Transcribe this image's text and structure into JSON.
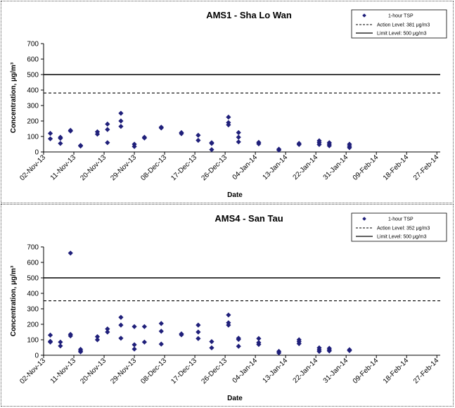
{
  "chart_data": [
    {
      "type": "scatter",
      "title": "AMS1 - Sha Lo Wan",
      "xlabel": "Date",
      "ylabel": "Concentration, μg/m³",
      "ylim": [
        0,
        700
      ],
      "yticks": [
        0,
        100,
        200,
        300,
        400,
        500,
        600,
        700
      ],
      "xticks": [
        "02-Nov-13",
        "11-Nov-13",
        "20-Nov-13",
        "29-Nov-13",
        "08-Dec-13",
        "17-Dec-13",
        "26-Dec-13",
        "04-Jan-14",
        "13-Jan-14",
        "22-Jan-14",
        "31-Jan-14",
        "09-Feb-14",
        "18-Feb-14",
        "27-Feb-14"
      ],
      "xlim": [
        "02-Nov-13",
        "28-Feb-14"
      ],
      "legend": {
        "placement": "top-right",
        "scatter_label": "1-hour TSP",
        "action_label": "Action Level: 381 μg/m3",
        "limit_label": "Limit Level: 500 μg/m3"
      },
      "action_level": 381,
      "limit_level": 500,
      "colors": {
        "points": "#1f1f7a",
        "lines": "#000000"
      },
      "series": [
        {
          "name": "1-hour TSP",
          "points": [
            [
              "04-Nov-13",
              120
            ],
            [
              "04-Nov-13",
              85
            ],
            [
              "07-Nov-13",
              95
            ],
            [
              "07-Nov-13",
              88
            ],
            [
              "07-Nov-13",
              55
            ],
            [
              "10-Nov-13",
              140
            ],
            [
              "10-Nov-13",
              135
            ],
            [
              "13-Nov-13",
              42
            ],
            [
              "13-Nov-13",
              38
            ],
            [
              "18-Nov-13",
              130
            ],
            [
              "18-Nov-13",
              115
            ],
            [
              "21-Nov-13",
              180
            ],
            [
              "21-Nov-13",
              145
            ],
            [
              "21-Nov-13",
              60
            ],
            [
              "25-Nov-13",
              250
            ],
            [
              "25-Nov-13",
              200
            ],
            [
              "25-Nov-13",
              165
            ],
            [
              "29-Nov-13",
              50
            ],
            [
              "29-Nov-13",
              35
            ],
            [
              "02-Dec-13",
              95
            ],
            [
              "02-Dec-13",
              90
            ],
            [
              "07-Dec-13",
              160
            ],
            [
              "07-Dec-13",
              155
            ],
            [
              "13-Dec-13",
              125
            ],
            [
              "13-Dec-13",
              118
            ],
            [
              "18-Dec-13",
              108
            ],
            [
              "18-Dec-13",
              75
            ],
            [
              "22-Dec-13",
              60
            ],
            [
              "22-Dec-13",
              55
            ],
            [
              "22-Dec-13",
              15
            ],
            [
              "27-Dec-13",
              225
            ],
            [
              "27-Dec-13",
              190
            ],
            [
              "27-Dec-13",
              175
            ],
            [
              "30-Dec-13",
              125
            ],
            [
              "30-Dec-13",
              95
            ],
            [
              "30-Dec-13",
              65
            ],
            [
              "05-Jan-14",
              62
            ],
            [
              "05-Jan-14",
              52
            ],
            [
              "11-Jan-14",
              18
            ],
            [
              "11-Jan-14",
              12
            ],
            [
              "17-Jan-14",
              55
            ],
            [
              "17-Jan-14",
              48
            ],
            [
              "23-Jan-14",
              72
            ],
            [
              "23-Jan-14",
              60
            ],
            [
              "23-Jan-14",
              48
            ],
            [
              "26-Jan-14",
              60
            ],
            [
              "26-Jan-14",
              50
            ],
            [
              "26-Jan-14",
              40
            ],
            [
              "01-Feb-14",
              50
            ],
            [
              "01-Feb-14",
              38
            ],
            [
              "01-Feb-14",
              28
            ]
          ]
        }
      ]
    },
    {
      "type": "scatter",
      "title": "AMS4 - San Tau",
      "xlabel": "Date",
      "ylabel": "Concentration, μg/m³",
      "ylim": [
        0,
        700
      ],
      "yticks": [
        0,
        100,
        200,
        300,
        400,
        500,
        600,
        700
      ],
      "xticks": [
        "02-Nov-13",
        "11-Nov-13",
        "20-Nov-13",
        "29-Nov-13",
        "08-Dec-13",
        "17-Dec-13",
        "26-Dec-13",
        "04-Jan-14",
        "13-Jan-14",
        "22-Jan-14",
        "31-Jan-14",
        "09-Feb-14",
        "18-Feb-14",
        "27-Feb-14"
      ],
      "xlim": [
        "02-Nov-13",
        "28-Feb-14"
      ],
      "legend": {
        "placement": "top-right",
        "scatter_label": "1-hour TSP",
        "action_label": "Action Level: 352 μg/m3",
        "limit_label": "Limit Level: 500 μg/m3"
      },
      "action_level": 352,
      "limit_level": 500,
      "colors": {
        "points": "#1f1f7a",
        "lines": "#000000"
      },
      "series": [
        {
          "name": "1-hour TSP",
          "points": [
            [
              "04-Nov-13",
              130
            ],
            [
              "04-Nov-13",
              90
            ],
            [
              "04-Nov-13",
              85
            ],
            [
              "07-Nov-13",
              85
            ],
            [
              "07-Nov-13",
              60
            ],
            [
              "10-Nov-13",
              660
            ],
            [
              "10-Nov-13",
              135
            ],
            [
              "10-Nov-13",
              125
            ],
            [
              "13-Nov-13",
              38
            ],
            [
              "13-Nov-13",
              28
            ],
            [
              "13-Nov-13",
              22
            ],
            [
              "18-Nov-13",
              120
            ],
            [
              "18-Nov-13",
              100
            ],
            [
              "21-Nov-13",
              170
            ],
            [
              "21-Nov-13",
              150
            ],
            [
              "25-Nov-13",
              245
            ],
            [
              "25-Nov-13",
              195
            ],
            [
              "25-Nov-13",
              110
            ],
            [
              "29-Nov-13",
              185
            ],
            [
              "29-Nov-13",
              68
            ],
            [
              "29-Nov-13",
              40
            ],
            [
              "02-Dec-13",
              185
            ],
            [
              "02-Dec-13",
              85
            ],
            [
              "07-Dec-13",
              205
            ],
            [
              "07-Dec-13",
              155
            ],
            [
              "07-Dec-13",
              72
            ],
            [
              "13-Dec-13",
              138
            ],
            [
              "13-Dec-13",
              132
            ],
            [
              "18-Dec-13",
              195
            ],
            [
              "18-Dec-13",
              150
            ],
            [
              "18-Dec-13",
              108
            ],
            [
              "22-Dec-13",
              88
            ],
            [
              "22-Dec-13",
              48
            ],
            [
              "27-Dec-13",
              260
            ],
            [
              "27-Dec-13",
              210
            ],
            [
              "27-Dec-13",
              195
            ],
            [
              "30-Dec-13",
              110
            ],
            [
              "30-Dec-13",
              102
            ],
            [
              "30-Dec-13",
              58
            ],
            [
              "05-Jan-14",
              108
            ],
            [
              "05-Jan-14",
              82
            ],
            [
              "05-Jan-14",
              70
            ],
            [
              "11-Jan-14",
              25
            ],
            [
              "11-Jan-14",
              15
            ],
            [
              "17-Jan-14",
              100
            ],
            [
              "17-Jan-14",
              88
            ],
            [
              "17-Jan-14",
              75
            ],
            [
              "23-Jan-14",
              48
            ],
            [
              "23-Jan-14",
              35
            ],
            [
              "23-Jan-14",
              25
            ],
            [
              "26-Jan-14",
              45
            ],
            [
              "26-Jan-14",
              35
            ],
            [
              "26-Jan-14",
              28
            ],
            [
              "01-Feb-14",
              36
            ],
            [
              "01-Feb-14",
              30
            ]
          ]
        }
      ]
    }
  ]
}
